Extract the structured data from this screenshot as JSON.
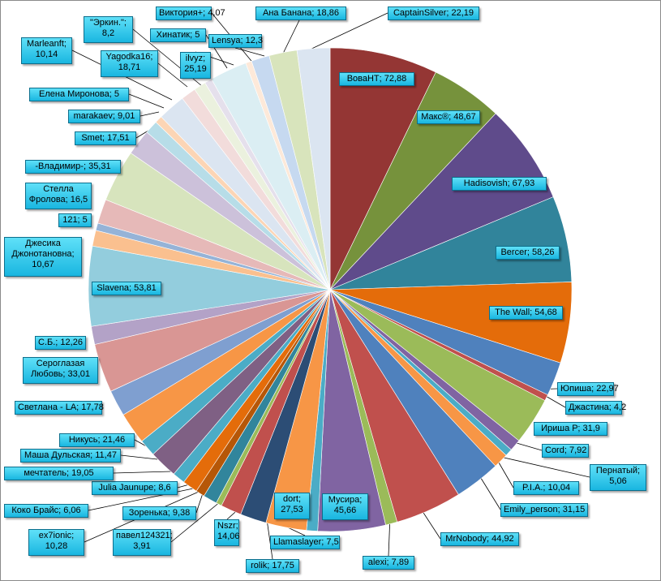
{
  "chart_data": {
    "type": "pie",
    "title": "",
    "start_angle_deg": 0,
    "direction": "clockwise",
    "slices": [
      {
        "label": "ВоваНТ",
        "value": 72.88,
        "value_text": "72,88",
        "color": "#943634"
      },
      {
        "label": "Макс®",
        "value": 48.67,
        "value_text": "48,67",
        "color": "#76923c"
      },
      {
        "label": "Hadisovish",
        "value": 67.93,
        "value_text": "67,93",
        "color": "#5f4b8b"
      },
      {
        "label": "Bercer",
        "value": 58.26,
        "value_text": "58,26",
        "color": "#31849b"
      },
      {
        "label": "The Wall",
        "value": 54.68,
        "value_text": "54,68",
        "color": "#e46c0a"
      },
      {
        "label": "Юпиша",
        "value": 22.97,
        "value_text": "22,97",
        "color": "#4f81bd"
      },
      {
        "label": "Джастина",
        "value": 4.2,
        "value_text": "4,2",
        "color": "#c0504d"
      },
      {
        "label": "Ириша Р",
        "value": 31.9,
        "value_text": "31,9",
        "color": "#9bbb59"
      },
      {
        "label": "Cord",
        "value": 7.92,
        "value_text": "7,92",
        "color": "#8064a2"
      },
      {
        "label": "Пернатый",
        "value": 5.06,
        "value_text": "5,06",
        "color": "#4bacc6"
      },
      {
        "label": "P.I.A.",
        "value": 10.04,
        "value_text": "10,04",
        "color": "#f79646"
      },
      {
        "label": "Emily_person",
        "value": 31.15,
        "value_text": "31,15",
        "color": "#4f81bd"
      },
      {
        "label": "MrNobody",
        "value": 44.92,
        "value_text": "44,92",
        "color": "#c0504d"
      },
      {
        "label": "alexi",
        "value": 7.89,
        "value_text": "7,89",
        "color": "#9bbb59"
      },
      {
        "label": "Мусира",
        "value": 45.66,
        "value_text": "45,66",
        "color": "#8064a2"
      },
      {
        "label": "Llamaslayer",
        "value": 7.5,
        "value_text": "7,5",
        "color": "#4bacc6"
      },
      {
        "label": "dort",
        "value": 27.53,
        "value_text": "27,53",
        "color": "#f79646"
      },
      {
        "label": "rolik",
        "value": 17.75,
        "value_text": "17,75",
        "color": "#2c4d75"
      },
      {
        "label": "Nszr",
        "value": 14.06,
        "value_text": "14,06",
        "color": "#c0504d"
      },
      {
        "label": "павел124321",
        "value": 3.91,
        "value_text": "3,91",
        "color": "#9bbb59"
      },
      {
        "label": "Зоренька",
        "value": 9.38,
        "value_text": "9,38",
        "color": "#31859c"
      },
      {
        "label": "Коко Брайс",
        "value": 6.06,
        "value_text": "6,06",
        "color": "#b65708"
      },
      {
        "label": "ex7ionic",
        "value": 10.28,
        "value_text": "10,28",
        "color": "#e46c0a"
      },
      {
        "label": "Julia Jaunupe",
        "value": 8.6,
        "value_text": "8,6",
        "color": "#4bacc6"
      },
      {
        "label": "мечтатель",
        "value": 19.05,
        "value_text": "19,05",
        "color": "#7f6084"
      },
      {
        "label": "Маша Дульская",
        "value": 11.47,
        "value_text": "11,47",
        "color": "#4bacc6"
      },
      {
        "label": "Никусь",
        "value": 21.46,
        "value_text": "21,46",
        "color": "#f79646"
      },
      {
        "label": "Светлана - LA",
        "value": 17.78,
        "value_text": "17,78",
        "color": "#7f9fd0"
      },
      {
        "label": "Сероглазая Любовь",
        "value": 33.01,
        "value_text": "33,01",
        "color": "#d99694"
      },
      {
        "label": "С.Б.",
        "value": 12.26,
        "value_text": "12,26",
        "color": "#b3a2c7"
      },
      {
        "label": "Slavena",
        "value": 53.81,
        "value_text": "53,81",
        "color": "#93cddd"
      },
      {
        "label": "Джесика Джонотановна",
        "value": 10.67,
        "value_text": "10,67",
        "color": "#fac08f"
      },
      {
        "label": "121",
        "value": 5,
        "value_text": "5",
        "color": "#95b3d7"
      },
      {
        "label": "Стелла Фролова",
        "value": 16.5,
        "value_text": "16,5",
        "color": "#e6b9b8"
      },
      {
        "label": "-Владимир-",
        "value": 35.31,
        "value_text": "35,31",
        "color": "#d7e4bd"
      },
      {
        "label": "Smet",
        "value": 17.51,
        "value_text": "17,51",
        "color": "#ccc1da"
      },
      {
        "label": "marakaev",
        "value": 9.01,
        "value_text": "9,01",
        "color": "#b7dde8"
      },
      {
        "label": "Елена Миронова",
        "value": 5,
        "value_text": "5",
        "color": "#fcd5b5"
      },
      {
        "label": "Yagodka16",
        "value": 18.71,
        "value_text": "18,71",
        "color": "#dbe5f1"
      },
      {
        "label": "Marleanft",
        "value": 10.14,
        "value_text": "10,14",
        "color": "#f2dcdb"
      },
      {
        "label": "\"Эркин.\"",
        "value": 8.2,
        "value_text": "8,2",
        "color": "#ebf1de"
      },
      {
        "label": "Хинатик",
        "value": 5,
        "value_text": "5",
        "color": "#e5e0ec"
      },
      {
        "label": "ilvyz",
        "value": 25.19,
        "value_text": "25,19",
        "color": "#dbeef3"
      },
      {
        "label": "Виктория+",
        "value": 4.07,
        "value_text": "4,07",
        "color": "#fde9d9"
      },
      {
        "label": "Lensya",
        "value": 12.3,
        "value_text": "12,3",
        "color": "#c6d9f0"
      },
      {
        "label": "Ана Банана",
        "value": 18.86,
        "value_text": "18,86",
        "color": "#d8e4bc"
      },
      {
        "label": "CaptainSilver",
        "value": 22.19,
        "value_text": "22,19",
        "color": "#dbe5f1"
      }
    ]
  }
}
